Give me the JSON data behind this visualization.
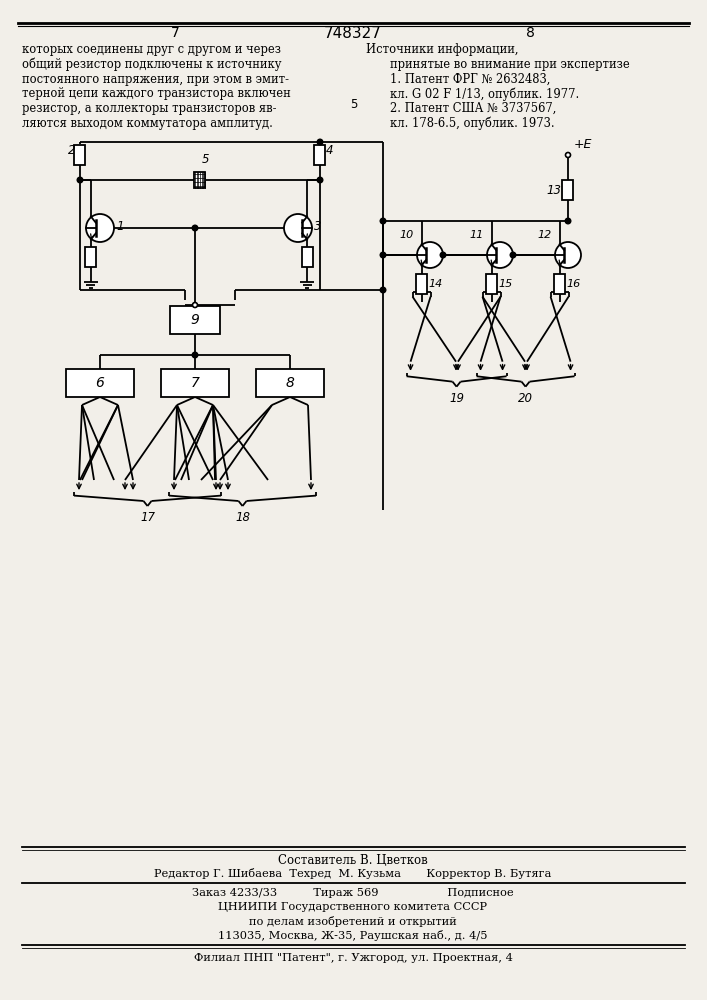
{
  "page_width": 7.07,
  "page_height": 10.0,
  "bg_color": "#f2efe9",
  "text_left": [
    "которых соединены друг с другом и через",
    "общий резистор подключены к источнику",
    "постоянного напряжения, при этом в эмит-",
    "терной цепи каждого транзистора включен",
    "резистор, а коллекторы транзисторов яв-",
    "ляются выходом коммутатора амплитуд."
  ],
  "text_right_title": "Источники информации,",
  "text_right_lines": [
    "принятые во внимание при экспертизе",
    "1. Патент ФРГ № 2632483,",
    "кл. G 02 F 1/13, опублик. 1977.",
    "2. Патент США № 3737567,",
    "кл. 178-6.5, опублик. 1973."
  ],
  "footnote_line1": "Составитель В. Цветков",
  "footnote_line2": "Редактор Г. Шибаева  Техред  М. Кузьма       Корректор В. Бутяга",
  "footnote_line3": "Заказ 4233/33          Тираж 569                   Подписное",
  "footnote_line4": "ЦНИИПИ Государственного комитета СССР",
  "footnote_line5": "по делам изобретений и открытий",
  "footnote_line6": "113035, Москва, Ж-35, Раушская наб., д. 4/5",
  "footnote_line7": "Филиал ПНП \"Патент\", г. Ужгород, ул. Проектная, 4"
}
